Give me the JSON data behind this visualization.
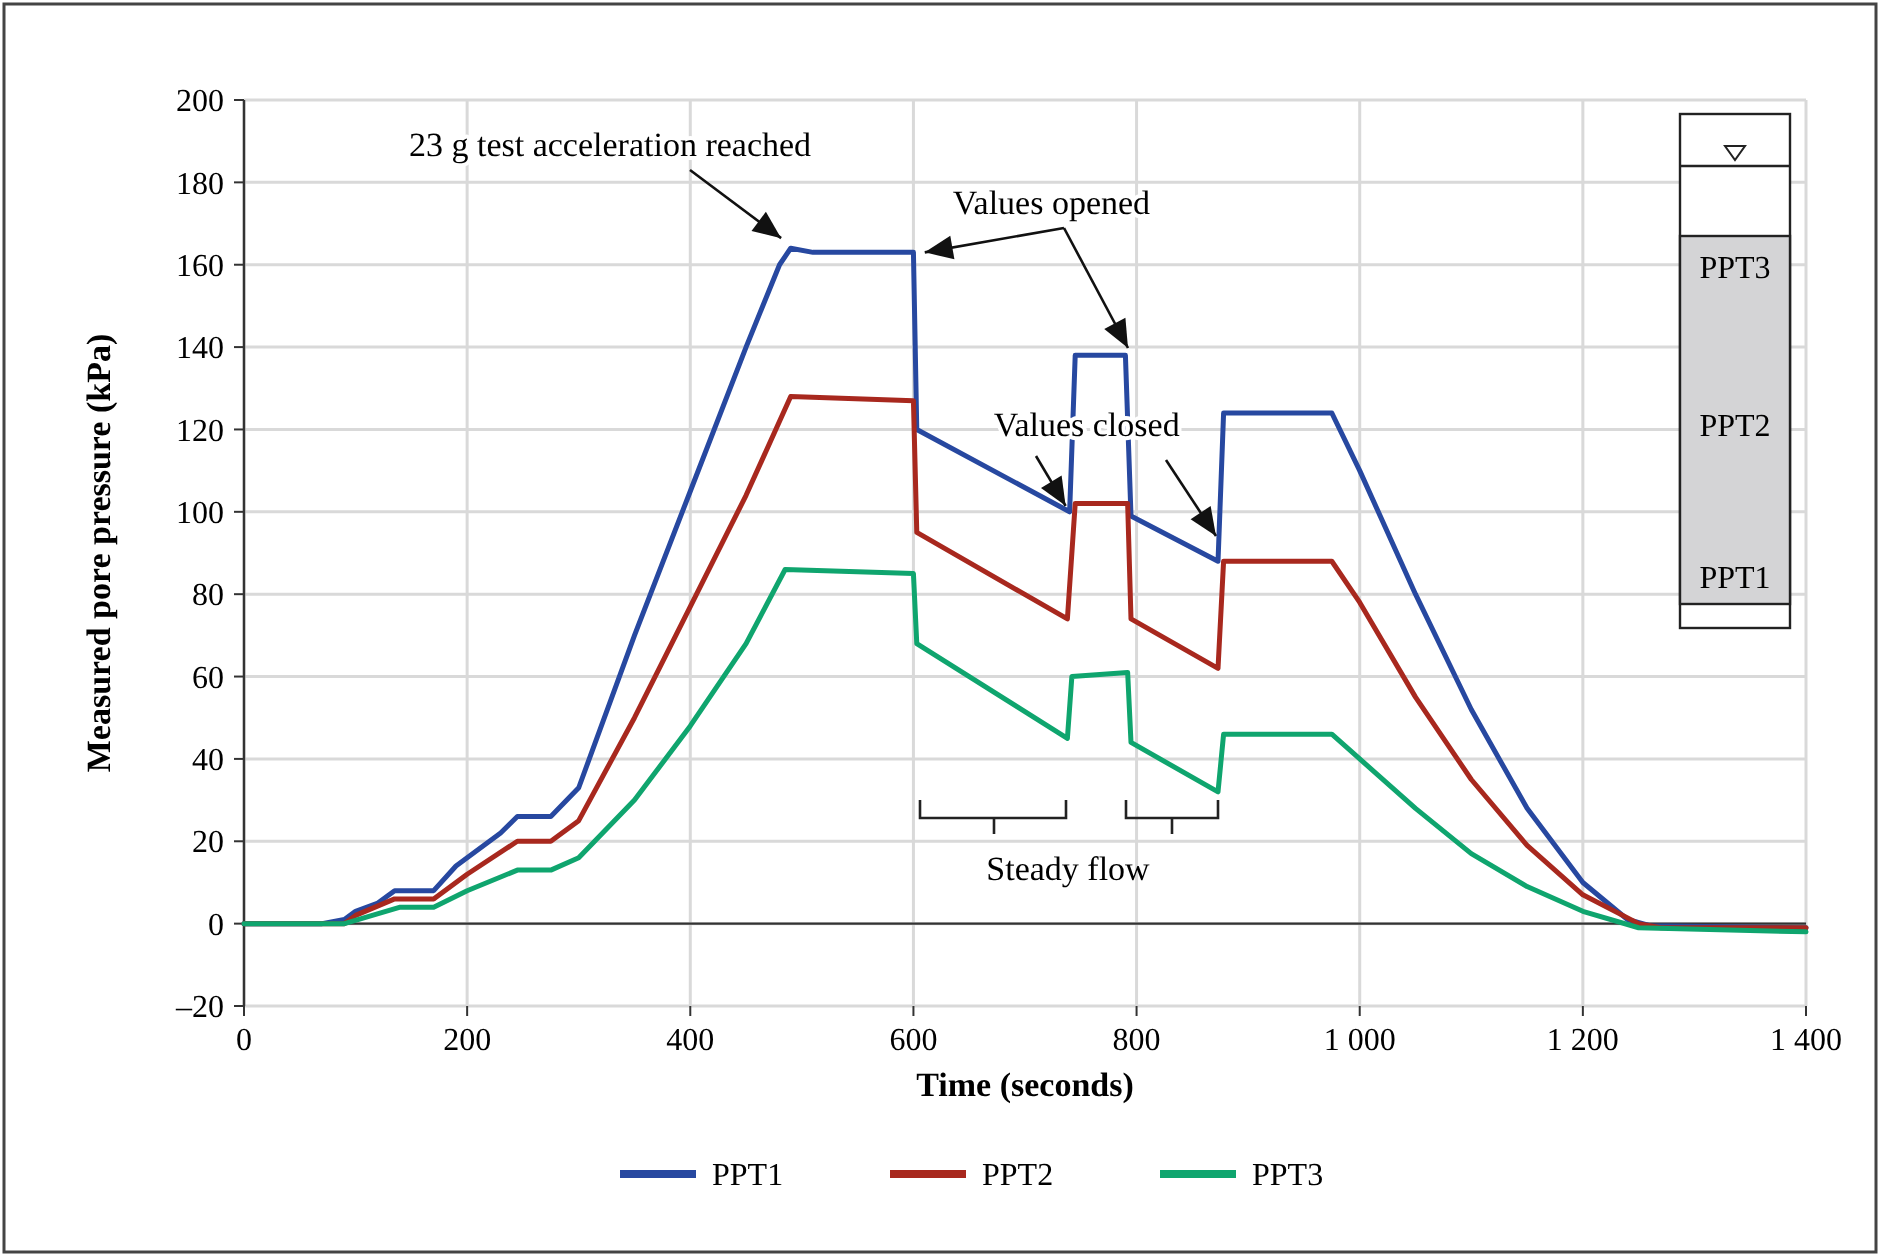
{
  "chart_data": {
    "type": "line",
    "xlabel": "Time (seconds)",
    "ylabel": "Measured pore pressure (kPa)",
    "xlim": [
      0,
      1400
    ],
    "xticks": [
      0,
      200,
      400,
      600,
      800,
      {
        "value": 1000,
        "label": "1 000"
      },
      {
        "value": 1200,
        "label": "1 200"
      },
      {
        "value": 1400,
        "label": "1 400"
      }
    ],
    "ylim": [
      -20,
      200
    ],
    "yticks": [
      {
        "value": -20,
        "label": "–20"
      },
      0,
      20,
      40,
      60,
      80,
      100,
      120,
      140,
      160,
      180,
      200
    ],
    "grid": true,
    "legend": "bottom",
    "line_style": "solid",
    "marker": "none",
    "series": [
      {
        "name": "PPT1",
        "color": "#2748a0",
        "x": [
          0,
          70,
          90,
          100,
          120,
          135,
          170,
          190,
          230,
          245,
          275,
          300,
          350,
          400,
          450,
          480,
          490,
          510,
          600,
          603,
          740,
          745,
          790,
          795,
          873,
          878,
          975,
          1000,
          1050,
          1100,
          1150,
          1200,
          1240,
          1260,
          1400
        ],
        "values": [
          0,
          0,
          1,
          3,
          5,
          8,
          8,
          14,
          22,
          26,
          26,
          33,
          70,
          105,
          140,
          160,
          164,
          163,
          163,
          120,
          100,
          138,
          138,
          99,
          88,
          124,
          124,
          110,
          80,
          52,
          28,
          10,
          1,
          -0.5,
          -1
        ]
      },
      {
        "name": "PPT2",
        "color": "#a8281e",
        "x": [
          0,
          90,
          100,
          135,
          170,
          200,
          245,
          275,
          300,
          350,
          400,
          450,
          490,
          600,
          603,
          738,
          745,
          792,
          795,
          873,
          878,
          975,
          1000,
          1050,
          1100,
          1150,
          1200,
          1250,
          1270,
          1400
        ],
        "values": [
          0,
          0,
          2,
          6,
          6,
          12,
          20,
          20,
          25,
          50,
          77,
          104,
          128,
          127,
          95,
          74,
          102,
          102,
          74,
          62,
          88,
          88,
          78,
          55,
          35,
          19,
          7,
          0,
          -1,
          -1
        ]
      },
      {
        "name": "PPT3",
        "color": "#0fa56e",
        "x": [
          0,
          90,
          140,
          170,
          200,
          245,
          275,
          300,
          350,
          400,
          450,
          485,
          600,
          603,
          738,
          742,
          792,
          795,
          873,
          878,
          975,
          1000,
          1050,
          1100,
          1150,
          1200,
          1250,
          1400
        ],
        "values": [
          0,
          0,
          4,
          4,
          8,
          13,
          13,
          16,
          30,
          48,
          68,
          86,
          85,
          68,
          45,
          60,
          61,
          44,
          32,
          46,
          46,
          40,
          28,
          17,
          9,
          3,
          -1,
          -2
        ]
      }
    ],
    "annotations": [
      {
        "text": "23 g test acceleration reached",
        "x": 485,
        "y": 165
      },
      {
        "text": "Values opened",
        "x": 603,
        "y": 163
      },
      {
        "text": "Values closed",
        "x": 740,
        "y": 100
      },
      "Steady flow",
      "PPT3",
      "PPT2",
      "PPT1"
    ]
  }
}
